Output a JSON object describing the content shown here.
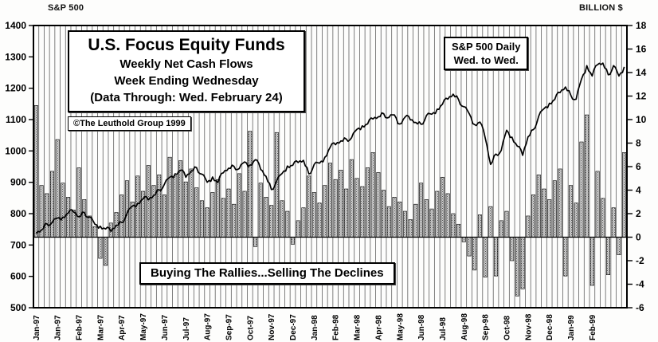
{
  "header": {
    "left_axis_title": "S&P 500",
    "right_axis_title": "BILLION $"
  },
  "title_box": {
    "line1": "U.S. Focus Equity Funds",
    "line2": "Weekly Net Cash Flows",
    "line3": "Week Ending Wednesday",
    "line4": "(Data Through: Wed. February 24)"
  },
  "copyright_box": {
    "text": "©The Leuthold Group 1999"
  },
  "legend_box": {
    "line1": "S&P 500 Daily",
    "line2": "Wed. to Wed."
  },
  "annotation_box": {
    "text": "Buying The Rallies...Selling The Declines"
  },
  "chart_data": {
    "type": "bar",
    "title": "U.S. Focus Equity Funds Weekly Net Cash Flows",
    "x_tick_labels": [
      "Jan-97",
      "Jan-97",
      "Feb-97",
      "Mar-97",
      "Apr-97",
      "May-97",
      "Jun-97",
      "Jul-97",
      "Aug-97",
      "Sep-97",
      "Oct-97",
      "Nov-97",
      "Dec-97",
      "Jan-98",
      "Feb-98",
      "Mar-98",
      "Apr-98",
      "May-98",
      "Jun-98",
      "Jul-98",
      "Aug-98",
      "Sep-98",
      "Oct-98",
      "Nov-98",
      "Dec-98",
      "Jan-99",
      "Feb-99"
    ],
    "left_axis": {
      "label": "S&P 500",
      "min": 500,
      "max": 1400,
      "step": 100,
      "ticks": [
        1400,
        1300,
        1200,
        1100,
        1000,
        900,
        800,
        700,
        600,
        500
      ]
    },
    "right_axis": {
      "label": "BILLION $",
      "min": -6,
      "max": 18,
      "step": 2,
      "ticks": [
        18,
        16,
        14,
        12,
        10,
        8,
        6,
        4,
        2,
        0,
        -2,
        -4,
        -6
      ]
    },
    "grid": "weekly-vertical",
    "legend_position": "top-right",
    "series": [
      {
        "name": "Weekly Net Cash Flows",
        "type": "bar",
        "axis": "right",
        "units": "billion $",
        "values": [
          11.2,
          4.4,
          3.7,
          5.6,
          8.3,
          4.6,
          3.4,
          2.3,
          5.9,
          3.2,
          1.8,
          0.9,
          -1.8,
          -2.4,
          1.2,
          2.1,
          3.6,
          4.8,
          3.0,
          5.2,
          3.9,
          6.1,
          4.4,
          5.3,
          3.6,
          6.8,
          5.2,
          6.5,
          4.7,
          5.8,
          4.2,
          3.1,
          2.5,
          3.8,
          4.9,
          3.3,
          4.1,
          2.8,
          5.4,
          3.9,
          9.0,
          -0.8,
          4.6,
          3.4,
          2.7,
          8.9,
          3.1,
          2.2,
          -0.6,
          1.4,
          2.5,
          5.2,
          3.8,
          2.9,
          4.4,
          6.3,
          4.9,
          5.7,
          4.1,
          6.6,
          5.0,
          4.3,
          5.9,
          7.2,
          5.5,
          4.0,
          2.6,
          3.4,
          3.0,
          2.2,
          1.5,
          2.8,
          4.6,
          3.2,
          2.4,
          3.9,
          5.1,
          3.7,
          2.0,
          1.1,
          -0.4,
          -1.6,
          -2.8,
          1.9,
          -3.4,
          2.6,
          -3.3,
          1.4,
          2.2,
          -2.0,
          -5.0,
          -4.4,
          1.8,
          3.6,
          5.3,
          4.1,
          3.2,
          4.8,
          5.8,
          -3.3,
          4.4,
          2.9,
          8.1,
          10.4,
          -4.1,
          5.6,
          3.3,
          -3.2,
          2.5,
          -1.5,
          7.2
        ]
      },
      {
        "name": "S&P 500 Daily Wed. to Wed.",
        "type": "line",
        "axis": "left",
        "units": "index",
        "values": [
          737,
          748,
          768,
          772,
          786,
          789,
          802,
          805,
          790,
          804,
          789,
          766,
          760,
          751,
          743,
          763,
          772,
          801,
          824,
          833,
          847,
          844,
          858,
          876,
          894,
          916,
          927,
          938,
          916,
          936,
          947,
          926,
          900,
          917,
          899,
          930,
          945,
          951,
          944,
          965,
          955,
          972,
          941,
          919,
          877,
          905,
          928,
          952,
          954,
          963,
          970,
          927,
          957,
          961,
          980,
          1012,
          1020,
          1032,
          1038,
          1042,
          1069,
          1080,
          1086,
          1102,
          1109,
          1119,
          1107,
          1115,
          1086,
          1108,
          1099,
          1091,
          1085,
          1113,
          1117,
          1133,
          1149,
          1165,
          1181,
          1164,
          1141,
          1119,
          1084,
          1092,
          1041,
          957,
          990,
          1002,
          1066,
          1044,
          1015,
          986,
          1045,
          1068,
          1111,
          1135,
          1152,
          1164,
          1186,
          1204,
          1178,
          1165,
          1229,
          1272,
          1239,
          1275,
          1280,
          1243,
          1272,
          1239,
          1268
        ]
      }
    ],
    "colors": {
      "bar_fill": "#cccccc",
      "bar_stroke": "#000000",
      "line": "#000000",
      "grid": "#606060",
      "frame": "#000000"
    }
  }
}
